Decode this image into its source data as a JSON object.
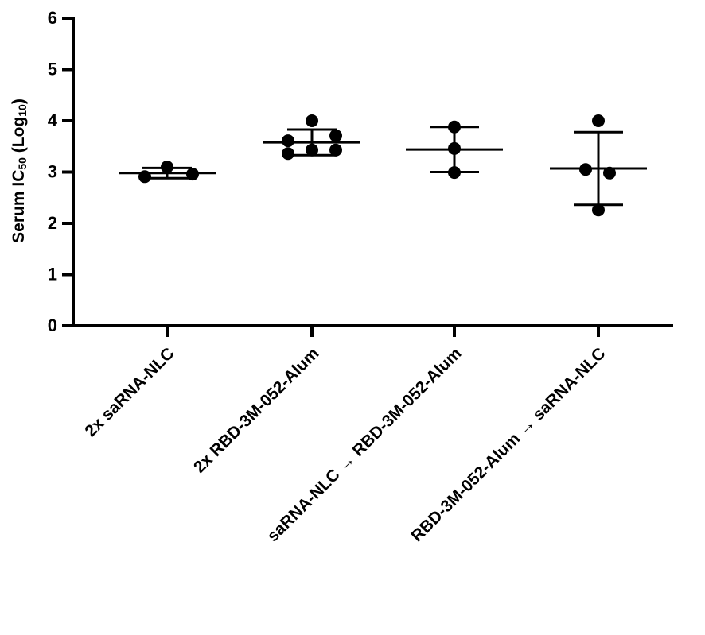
{
  "chart_data": {
    "type": "dot",
    "ylabel": [
      "Serum IC",
      "50",
      " (Log",
      "10",
      ")"
    ],
    "categories": [
      "2x saRNA-NLC",
      "2x RBD-3M-052-Alum",
      "saRNA-NLC → RBD-3M-052-Alum",
      "RBD-3M-052-Alum → saRNA-NLC"
    ],
    "groups": [
      {
        "points": [
          2.91,
          3.1,
          2.96
        ],
        "mean": 2.98,
        "sd": 0.1
      },
      {
        "points": [
          4.0,
          3.61,
          3.71,
          3.36,
          3.43,
          3.43
        ],
        "mean": 3.58,
        "sd": 0.25
      },
      {
        "points": [
          3.88,
          3.46,
          2.99
        ],
        "mean": 3.44,
        "sd": 0.44
      },
      {
        "points": [
          4.0,
          3.05,
          2.98,
          2.26
        ],
        "mean": 3.07,
        "sd": 0.71
      }
    ],
    "color": "#000000",
    "ylim": [
      0,
      6
    ],
    "yticks": [
      0,
      1,
      2,
      3,
      4,
      5,
      6
    ]
  }
}
